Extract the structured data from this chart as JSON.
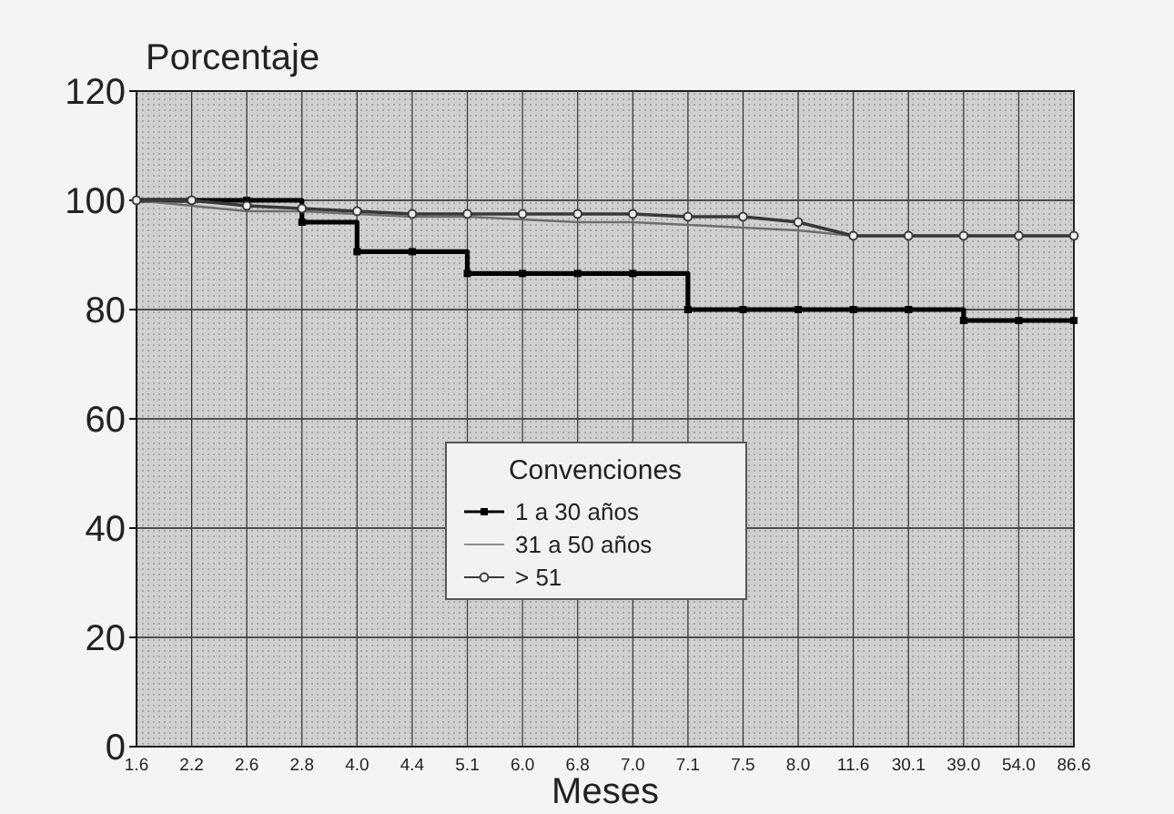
{
  "chart_data": {
    "type": "line",
    "ylabel": "Porcentaje",
    "xlabel": "Meses",
    "legend_title": "Convenciones",
    "legend": "bottom",
    "grid": true,
    "categories": [
      "1.6",
      "2.2",
      "2.6",
      "2.8",
      "4.0",
      "4.4",
      "5.1",
      "6.0",
      "6.8",
      "7.0",
      "7.1",
      "7.5",
      "8.0",
      "11.6",
      "30.1",
      "39.0",
      "54.0",
      "86.6"
    ],
    "ylim": [
      0,
      120
    ],
    "yticks": [
      0,
      20,
      40,
      60,
      80,
      100,
      120
    ],
    "series": [
      {
        "name": "1 a 30 años",
        "type": "step",
        "color": "#000000",
        "marker": "square",
        "values": [
          100,
          100,
          100,
          96,
          90.6,
          90.6,
          86.6,
          86.6,
          86.6,
          86.6,
          80,
          80,
          80,
          80,
          80,
          78,
          78,
          78
        ]
      },
      {
        "name": "31 a 50 años",
        "color": "#6e6e6e",
        "marker": "none",
        "values": [
          100,
          99,
          98,
          98,
          97.5,
          97,
          97,
          96.5,
          96,
          96,
          95.5,
          95,
          94.5,
          93.5,
          93.5,
          93.5,
          93.5,
          93.5
        ]
      },
      {
        "name": "> 51",
        "color": "#383838",
        "marker": "circle",
        "values": [
          100,
          100,
          99,
          98.5,
          98,
          97.5,
          97.5,
          97.5,
          97.5,
          97.5,
          97,
          97,
          96,
          93.5,
          93.5,
          93.5,
          93.5,
          93.5
        ]
      }
    ]
  }
}
